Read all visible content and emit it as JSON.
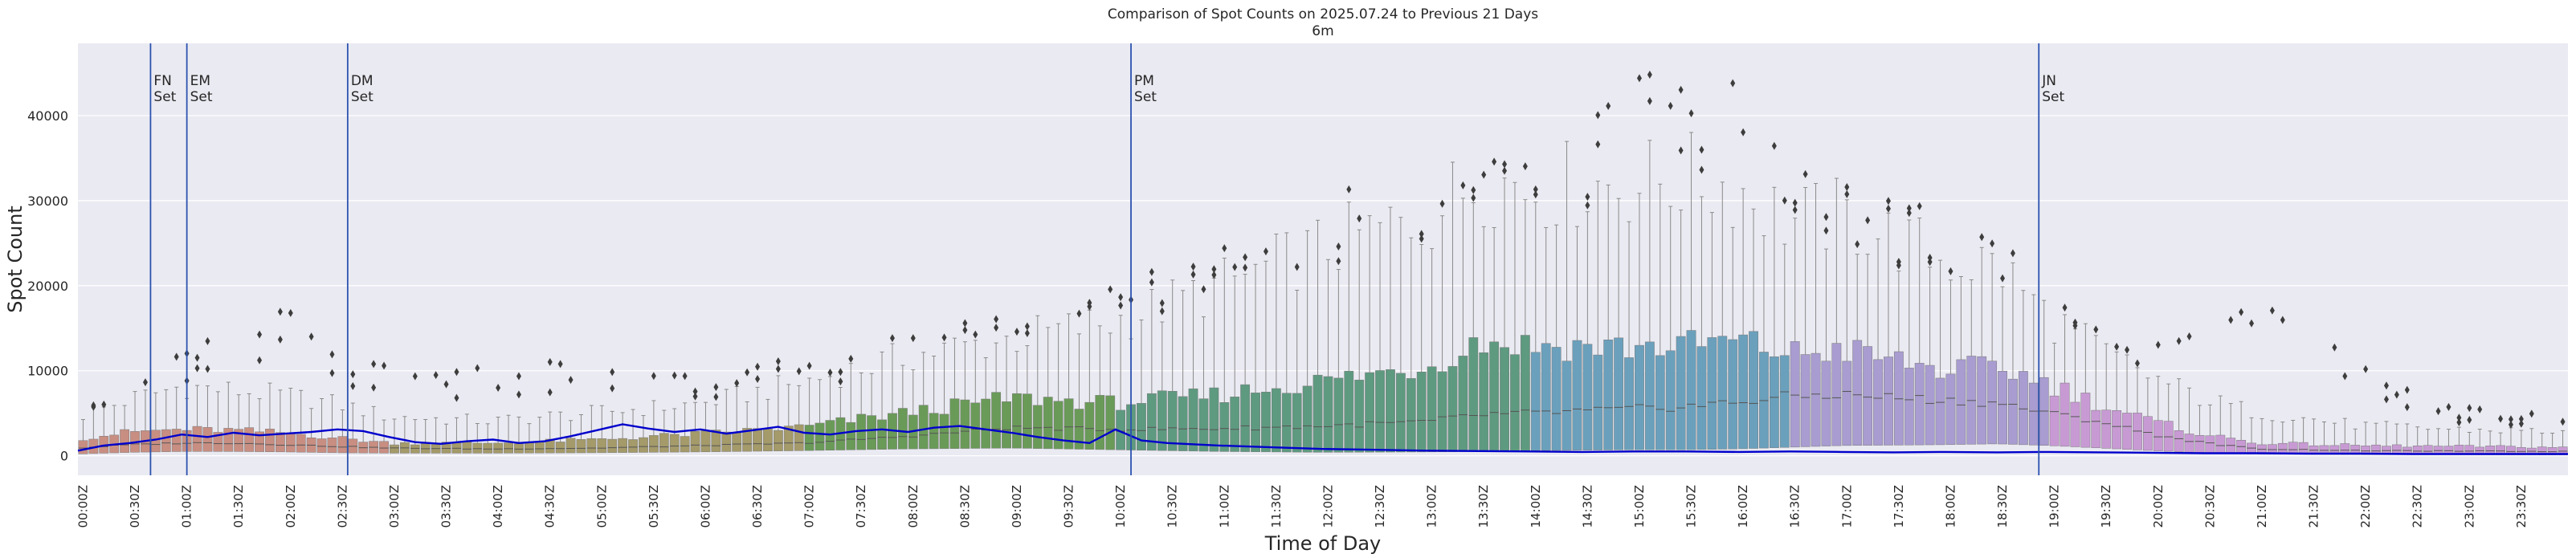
{
  "chart_data": {
    "type": "box",
    "title": "Comparison of Spot Counts on 2025.07.24 to Previous 21 Days",
    "subtitle": "6m",
    "xlabel": "Time of Day",
    "ylabel": "Spot Count",
    "ylim": [
      -2300,
      48500
    ],
    "yticks": [
      0,
      10000,
      20000,
      30000,
      40000
    ],
    "grid": true,
    "bin_minutes": 6,
    "xtick_labels": [
      "00:00Z",
      "00:30Z",
      "01:00Z",
      "01:30Z",
      "02:00Z",
      "02:30Z",
      "03:00Z",
      "03:30Z",
      "04:00Z",
      "04:30Z",
      "05:00Z",
      "05:30Z",
      "06:00Z",
      "06:30Z",
      "07:00Z",
      "07:30Z",
      "08:00Z",
      "08:30Z",
      "09:00Z",
      "09:30Z",
      "10:00Z",
      "10:30Z",
      "11:00Z",
      "11:30Z",
      "12:00Z",
      "12:30Z",
      "13:00Z",
      "13:30Z",
      "14:00Z",
      "14:30Z",
      "15:00Z",
      "15:30Z",
      "16:00Z",
      "16:30Z",
      "17:00Z",
      "17:30Z",
      "18:00Z",
      "18:30Z",
      "19:00Z",
      "19:30Z",
      "20:00Z",
      "20:30Z",
      "21:00Z",
      "21:30Z",
      "22:00Z",
      "22:30Z",
      "23:00Z",
      "23:30Z"
    ],
    "color_segments": [
      {
        "from_hour": 0,
        "to_hour": 3,
        "color": "#c88e82"
      },
      {
        "from_hour": 3,
        "to_hour": 7,
        "color": "#a49a6a"
      },
      {
        "from_hour": 7,
        "to_hour": 10,
        "color": "#6a9a58"
      },
      {
        "from_hour": 10,
        "to_hour": 14,
        "color": "#5e9a80"
      },
      {
        "from_hour": 14,
        "to_hour": 16.5,
        "color": "#6aa0bc"
      },
      {
        "from_hour": 16.5,
        "to_hour": 19,
        "color": "#a89cd0"
      },
      {
        "from_hour": 19,
        "to_hour": 24,
        "color": "#c89ad4"
      }
    ],
    "profile": {
      "hours": [
        0,
        0.5,
        1,
        1.5,
        2,
        2.5,
        3,
        4,
        5,
        6,
        7,
        8,
        9,
        10,
        11,
        12,
        13,
        13.5,
        14,
        15,
        15.5,
        16,
        16.5,
        17,
        18,
        18.5,
        19,
        19.5,
        20,
        20.5,
        21,
        22,
        23,
        24
      ],
      "median": [
        900,
        1300,
        1500,
        1500,
        1300,
        1100,
        900,
        800,
        900,
        1200,
        1500,
        2300,
        3300,
        3100,
        3200,
        3500,
        4000,
        4800,
        5000,
        5500,
        5800,
        6300,
        7000,
        7200,
        6500,
        6200,
        5000,
        4000,
        2500,
        1500,
        800,
        600,
        550,
        500
      ],
      "q1": [
        200,
        400,
        500,
        500,
        450,
        350,
        300,
        300,
        350,
        450,
        600,
        800,
        900,
        700,
        500,
        400,
        450,
        500,
        600,
        700,
        700,
        800,
        1000,
        1200,
        1300,
        1400,
        1200,
        900,
        600,
        350,
        200,
        150,
        120,
        100
      ],
      "q3": [
        2000,
        2800,
        3100,
        3000,
        2700,
        2100,
        1500,
        1500,
        1900,
        2600,
        3400,
        5100,
        6800,
        6200,
        7200,
        8800,
        10500,
        13500,
        13000,
        12800,
        13000,
        13500,
        12000,
        12500,
        10000,
        10500,
        8500,
        6000,
        4000,
        2500,
        1500,
        1200,
        1100,
        1000
      ],
      "whisker": [
        4500,
        6500,
        8000,
        7500,
        7000,
        6000,
        4500,
        4000,
        5000,
        6000,
        8500,
        11500,
        13500,
        15500,
        19500,
        24000,
        27500,
        32000,
        31000,
        31500,
        32000,
        31000,
        27000,
        27500,
        22500,
        22000,
        16000,
        12000,
        9000,
        6500,
        5000,
        3500,
        3000,
        2800
      ],
      "outlier": [
        6500,
        7500,
        11000,
        14000,
        16000,
        11000,
        9500,
        9500,
        11000,
        9000,
        10500,
        13000,
        15500,
        18500,
        23000,
        25000,
        27000,
        33500,
        33000,
        40000,
        44000,
        41000,
        36000,
        28000,
        21000,
        20000,
        12500,
        11500,
        12000,
        15000,
        18000,
        9500,
        5200,
        4200
      ]
    },
    "current_day_series": {
      "name": "2025.07.24",
      "color": "#0000cc",
      "hours": [
        0,
        0.25,
        0.5,
        0.75,
        1,
        1.25,
        1.5,
        1.75,
        2,
        2.25,
        2.5,
        2.75,
        3,
        3.25,
        3.5,
        3.75,
        4,
        4.25,
        4.5,
        4.75,
        5,
        5.25,
        5.5,
        5.75,
        6,
        6.25,
        6.5,
        6.75,
        7,
        7.25,
        7.5,
        7.75,
        8,
        8.25,
        8.5,
        8.75,
        9,
        9.25,
        9.5,
        9.75,
        10,
        10.25,
        10.5,
        11,
        11.5,
        12,
        12.5,
        13,
        13.5,
        14,
        14.5,
        15,
        15.5,
        16,
        16.5,
        17,
        17.5,
        18,
        18.5,
        19,
        19.5,
        20,
        20.5,
        21,
        21.5,
        22,
        22.5,
        23,
        23.5,
        24
      ],
      "values": [
        600,
        1200,
        1500,
        1900,
        2500,
        2200,
        2700,
        2400,
        2600,
        2800,
        3100,
        2900,
        2200,
        1600,
        1400,
        1700,
        1900,
        1500,
        1700,
        2300,
        3000,
        3700,
        3200,
        2800,
        3100,
        2600,
        3000,
        3400,
        2700,
        2500,
        2900,
        3100,
        2800,
        3300,
        3500,
        3100,
        2700,
        2200,
        1800,
        1500,
        3100,
        1800,
        1500,
        1200,
        1000,
        800,
        700,
        600,
        550,
        500,
        450,
        500,
        500,
        450,
        500,
        450,
        400,
        450,
        400,
        450,
        400,
        350,
        300,
        300,
        250,
        250,
        200,
        200,
        200,
        200
      ]
    },
    "annotations": [
      {
        "hour": 0.7,
        "label": "FN",
        "sublabel": "Set"
      },
      {
        "hour": 1.05,
        "label": "EM",
        "sublabel": "Set"
      },
      {
        "hour": 2.6,
        "label": "DM",
        "sublabel": "Set"
      },
      {
        "hour": 10.15,
        "label": "PM",
        "sublabel": "Set"
      },
      {
        "hour": 18.9,
        "label": "JN",
        "sublabel": "Set"
      }
    ]
  },
  "style": {
    "plot_bg": "#eaeaf2",
    "grid_color": "#ffffff",
    "vline_color": "#2b52b0",
    "median_color": "#555555",
    "outlier_color": "#3d3d3d",
    "whisker_color": "#8a8a8a"
  }
}
